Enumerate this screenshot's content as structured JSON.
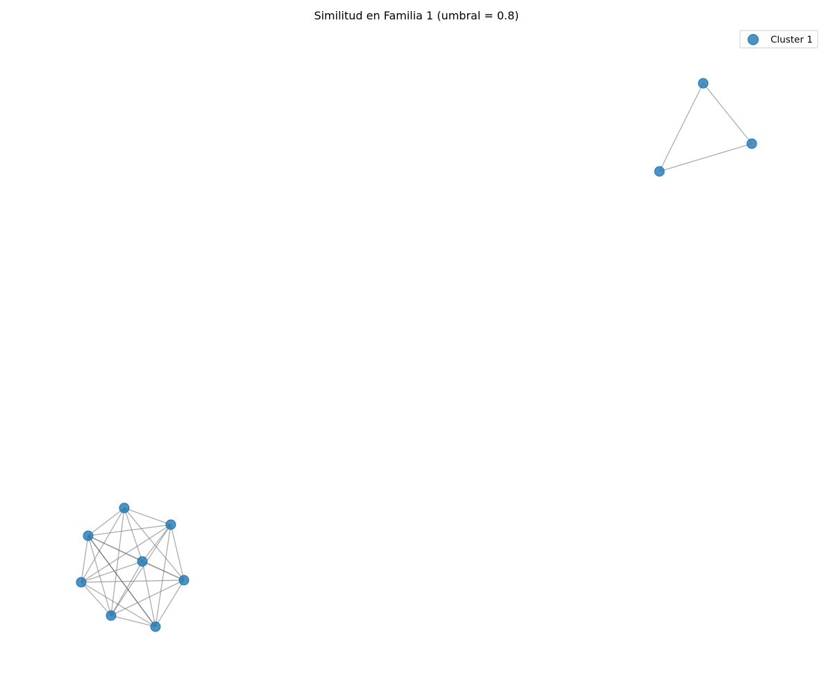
{
  "title": "Similitud en Familia 1 (umbral = 0.8)",
  "legend": {
    "entries": [
      {
        "label": "Cluster 1",
        "color": "#1f77b4"
      }
    ]
  },
  "node_color": "#1f77b4",
  "edge_color": "#808080",
  "clusters": [
    {
      "name": "Cluster 1",
      "components": [
        {
          "nodes": [
            "n1",
            "n2",
            "n3"
          ],
          "edges": [
            [
              "n1",
              "n2"
            ],
            [
              "n1",
              "n3"
            ],
            [
              "n2",
              "n3"
            ]
          ]
        },
        {
          "nodes": [
            "m1",
            "m2",
            "m3",
            "m4",
            "m5",
            "m6",
            "m7",
            "m8"
          ],
          "edges": [
            [
              "m1",
              "m2"
            ],
            [
              "m1",
              "m3"
            ],
            [
              "m1",
              "m4"
            ],
            [
              "m1",
              "m5"
            ],
            [
              "m1",
              "m6"
            ],
            [
              "m1",
              "m7"
            ],
            [
              "m2",
              "m3"
            ],
            [
              "m2",
              "m4"
            ],
            [
              "m2",
              "m5"
            ],
            [
              "m2",
              "m6"
            ],
            [
              "m2",
              "m7"
            ],
            [
              "m2",
              "m8"
            ],
            [
              "m3",
              "m4"
            ],
            [
              "m3",
              "m5"
            ],
            [
              "m3",
              "m6"
            ],
            [
              "m3",
              "m7"
            ],
            [
              "m3",
              "m8"
            ],
            [
              "m4",
              "m5"
            ],
            [
              "m4",
              "m6"
            ],
            [
              "m4",
              "m7"
            ],
            [
              "m4",
              "m8"
            ],
            [
              "m5",
              "m6"
            ],
            [
              "m5",
              "m7"
            ],
            [
              "m5",
              "m8"
            ],
            [
              "m6",
              "m7"
            ],
            [
              "m6",
              "m8"
            ],
            [
              "m7",
              "m8"
            ]
          ],
          "strong_edges": [
            [
              "m3",
              "m8"
            ]
          ]
        }
      ]
    }
  ]
}
